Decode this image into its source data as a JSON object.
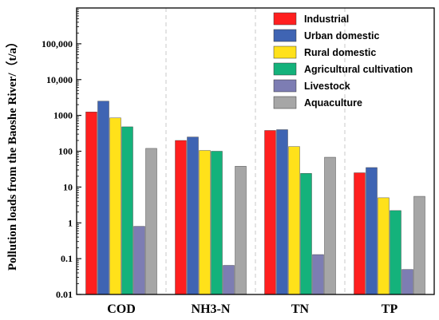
{
  "chart_data": {
    "type": "bar",
    "ylabel": "Pollution loads from the Baoshe River/（t/a）",
    "yscale": "log",
    "ylim": [
      0.01,
      1000000
    ],
    "ytick_values": [
      0.01,
      0.1,
      1,
      10,
      100,
      1000,
      10000,
      100000
    ],
    "ytick_labels": [
      "0.01",
      "0.1",
      "1",
      "10",
      "100",
      "1000",
      "10,000",
      "100,000"
    ],
    "categories": [
      "COD",
      "NH3-N",
      "TN",
      "TP"
    ],
    "series": [
      {
        "name": "Industrial",
        "color": "#ff1f1f",
        "values": [
          1250,
          200,
          380,
          25
        ]
      },
      {
        "name": "Urban domestic",
        "color": "#3f64b3",
        "values": [
          2500,
          250,
          400,
          35
        ]
      },
      {
        "name": "Rural domestic",
        "color": "#ffe11a",
        "values": [
          850,
          105,
          135,
          5
        ]
      },
      {
        "name": "Agricultural cultivation",
        "color": "#14b27b",
        "values": [
          480,
          100,
          24,
          2.2
        ]
      },
      {
        "name": "Livestock",
        "color": "#7d7db3",
        "values": [
          0.8,
          0.065,
          0.13,
          0.05
        ]
      },
      {
        "name": "Aquaculture",
        "color": "#a6a6a6",
        "values": [
          120,
          38,
          68,
          5.5
        ]
      }
    ],
    "grid": "vertical dashed separators between categories",
    "legend": "top-right"
  }
}
